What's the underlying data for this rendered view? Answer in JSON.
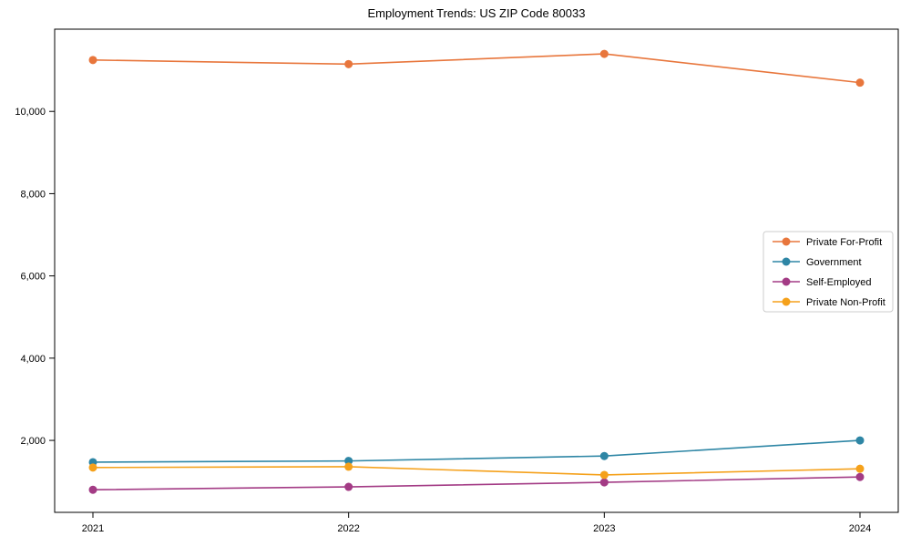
{
  "chart_data": {
    "type": "line",
    "title": "Employment Trends: US ZIP Code 80033",
    "xlabel": "",
    "ylabel": "",
    "x": [
      "2021",
      "2022",
      "2023",
      "2024"
    ],
    "series": [
      {
        "name": "Private For-Profit",
        "color": "#E8763C",
        "values": [
          11250,
          11150,
          11400,
          10700
        ]
      },
      {
        "name": "Government",
        "color": "#2E86A5",
        "values": [
          1470,
          1500,
          1620,
          2000
        ]
      },
      {
        "name": "Self-Employed",
        "color": "#A33B85",
        "values": [
          800,
          870,
          980,
          1110
        ]
      },
      {
        "name": "Private Non-Profit",
        "color": "#F5A11B",
        "values": [
          1340,
          1360,
          1160,
          1310
        ]
      }
    ],
    "ylim": [
      250,
      12000
    ],
    "yticks": [
      2000,
      4000,
      6000,
      8000,
      10000
    ],
    "ytick_labels": [
      "2,000",
      "4,000",
      "6,000",
      "8,000",
      "10,000"
    ],
    "grid": false,
    "legend_position": "center-right",
    "legend_entries": [
      "Private For-Profit",
      "Government",
      "Self-Employed",
      "Private Non-Profit"
    ],
    "marker": "circle",
    "axis_color": "#000000",
    "legend_border_color": "#cccccc",
    "background_color": "#ffffff"
  }
}
